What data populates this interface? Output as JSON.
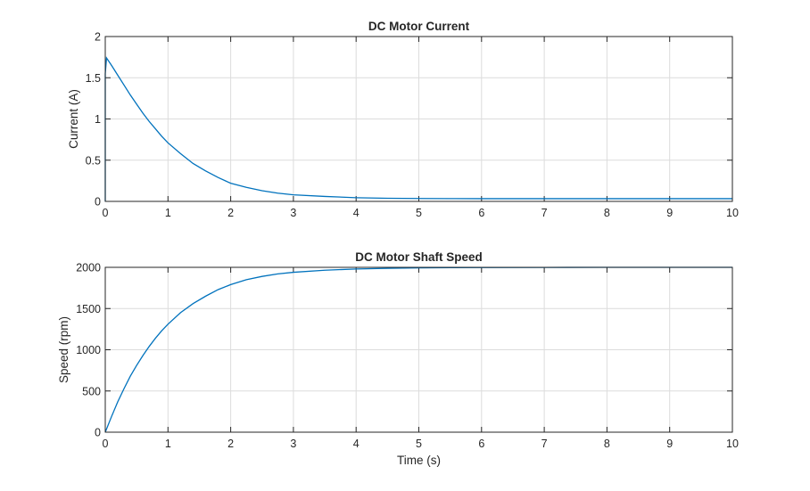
{
  "chart_data": [
    {
      "type": "line",
      "title": "DC Motor Current",
      "xlabel": "",
      "ylabel": "Current (A)",
      "xlim": [
        0,
        10
      ],
      "ylim": [
        0,
        2
      ],
      "xticks": [
        "0",
        "1",
        "2",
        "3",
        "4",
        "5",
        "6",
        "7",
        "8",
        "9",
        "10"
      ],
      "yticks": [
        "0",
        "0.5",
        "1",
        "1.5",
        "2"
      ],
      "grid": true,
      "color": "#0072BD",
      "x": [
        0,
        0.0,
        0.02,
        0.1,
        0.2,
        0.3,
        0.4,
        0.5,
        0.6,
        0.7,
        0.8,
        0.9,
        1.0,
        1.2,
        1.4,
        1.6,
        1.8,
        2.0,
        2.25,
        2.5,
        2.75,
        3.0,
        3.5,
        4.0,
        4.5,
        5.0,
        5.5,
        6.0,
        7.0,
        8.0,
        9.0,
        10.0
      ],
      "y": [
        0,
        1.55,
        1.74,
        1.65,
        1.53,
        1.41,
        1.29,
        1.18,
        1.07,
        0.97,
        0.88,
        0.79,
        0.71,
        0.58,
        0.46,
        0.37,
        0.29,
        0.22,
        0.17,
        0.13,
        0.1,
        0.08,
        0.06,
        0.045,
        0.038,
        0.035,
        0.034,
        0.033,
        0.033,
        0.033,
        0.033,
        0.033
      ]
    },
    {
      "type": "line",
      "title": "DC Motor Shaft Speed",
      "xlabel": "Time (s)",
      "ylabel": "Speed (rpm)",
      "xlim": [
        0,
        10
      ],
      "ylim": [
        0,
        2000
      ],
      "xticks": [
        "0",
        "1",
        "2",
        "3",
        "4",
        "5",
        "6",
        "7",
        "8",
        "9",
        "10"
      ],
      "yticks": [
        "0",
        "500",
        "1000",
        "1500",
        "2000"
      ],
      "grid": true,
      "color": "#0072BD",
      "x": [
        0,
        0.1,
        0.2,
        0.3,
        0.4,
        0.5,
        0.6,
        0.7,
        0.8,
        0.9,
        1.0,
        1.2,
        1.4,
        1.6,
        1.8,
        2.0,
        2.25,
        2.5,
        2.75,
        3.0,
        3.5,
        4.0,
        4.5,
        5.0,
        5.5,
        6.0,
        7.0,
        8.0,
        9.0,
        10.0
      ],
      "y": [
        0,
        190,
        370,
        530,
        680,
        810,
        930,
        1040,
        1140,
        1230,
        1310,
        1450,
        1560,
        1650,
        1730,
        1790,
        1850,
        1890,
        1920,
        1940,
        1965,
        1980,
        1988,
        1993,
        1996,
        1998,
        1999,
        2000,
        2000,
        2000
      ]
    }
  ]
}
